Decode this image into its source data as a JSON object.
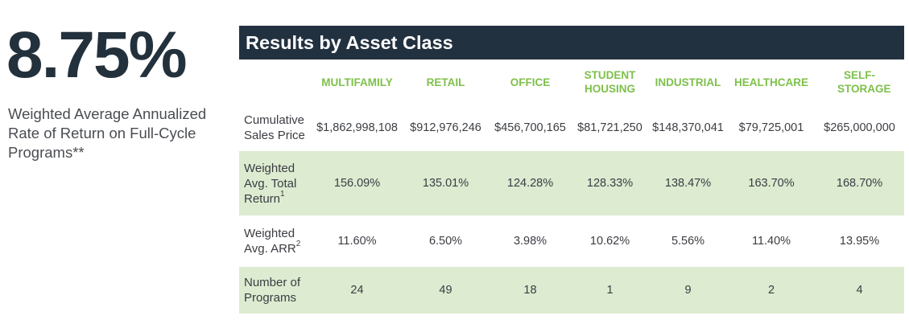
{
  "summary": {
    "rate": "8.75%",
    "caption": "Weighted Average Annualized Rate of Return on Full-Cycle Programs**"
  },
  "panel": {
    "title": "Results by Asset Class",
    "columns": [
      "MULTIFAMILY",
      "RETAIL",
      "OFFICE",
      "STUDENT HOUSING",
      "INDUSTRIAL",
      "HEALTHCARE",
      "SELF-STORAGE"
    ],
    "rows": [
      {
        "label": "Cumulative Sales Price",
        "footnote": "",
        "values": [
          "$1,862,998,108",
          "$912,976,246",
          "$456,700,165",
          "$81,721,250",
          "$148,370,041",
          "$79,725,001",
          "$265,000,000"
        ]
      },
      {
        "label": "Weighted Avg. Total Return",
        "footnote": "1",
        "values": [
          "156.09%",
          "135.01%",
          "124.28%",
          "128.33%",
          "138.47%",
          "163.70%",
          "168.70%"
        ]
      },
      {
        "label": "Weighted Avg. ARR",
        "footnote": "2",
        "values": [
          "11.60%",
          "6.50%",
          "3.98%",
          "10.62%",
          "5.56%",
          "11.40%",
          "13.95%"
        ]
      },
      {
        "label": "Number of Programs",
        "footnote": "",
        "values": [
          "24",
          "49",
          "18",
          "1",
          "9",
          "2",
          "4"
        ]
      }
    ]
  },
  "colors": {
    "header_bg": "#223140",
    "column_heading": "#7ec04a",
    "shaded_row": "#ddebd1",
    "big_rate": "#23313d"
  }
}
